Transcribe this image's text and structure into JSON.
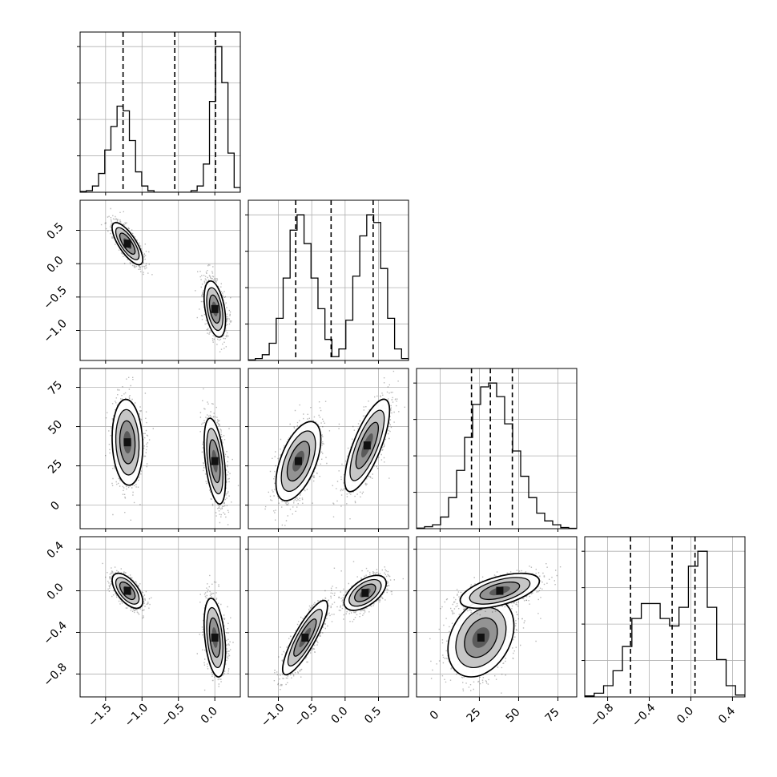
{
  "chart_data": {
    "type": "corner",
    "description_note": "",
    "parameters": [
      {
        "index": 0,
        "range": [
          -1.85,
          0.35
        ],
        "ticks": [
          -1.5,
          -1.0,
          -0.5,
          0.0
        ],
        "tick_labels": [
          "−1.5",
          "−1.0",
          "−0.5",
          "0.0"
        ],
        "quantiles": [
          -1.26,
          -0.55,
          0.01
        ],
        "hist_counts": [
          0.5,
          1,
          4,
          12,
          27,
          42,
          55,
          52,
          33,
          13,
          4,
          1,
          0,
          0,
          0,
          0,
          0,
          0,
          1,
          4,
          18,
          58,
          93,
          70,
          25,
          3
        ]
      },
      {
        "index": 1,
        "range": [
          -1.45,
          0.95
        ],
        "ticks": [
          -1.0,
          -0.5,
          0.0,
          0.5
        ],
        "tick_labels": [
          "−1.0",
          "−0.5",
          "0.0",
          "0.5"
        ],
        "ylim_ticks": [
          0.5,
          0.0,
          -0.5,
          -1.0
        ],
        "quantiles": [
          -0.74,
          -0.21,
          0.42
        ],
        "hist_counts": [
          0.3,
          1,
          3,
          9,
          22,
          43,
          68,
          76,
          61,
          43,
          27,
          11,
          2,
          6,
          21,
          44,
          65,
          76,
          72,
          48,
          22,
          6,
          1
        ]
      },
      {
        "index": 2,
        "range": [
          -15,
          87
        ],
        "ticks": [
          0,
          25,
          50,
          75
        ],
        "tick_labels": [
          "0",
          "25",
          "50",
          "75"
        ],
        "quantiles": [
          20,
          32,
          46
        ],
        "hist_counts": [
          0.3,
          1,
          2,
          6,
          16,
          30,
          47,
          64,
          73,
          75,
          68,
          54,
          40,
          27,
          16,
          8,
          4,
          2,
          0.6,
          0.2
        ]
      },
      {
        "index": 3,
        "range": [
          -1.02,
          0.52
        ],
        "ticks": [
          -0.8,
          -0.4,
          0.0,
          0.4
        ],
        "tick_labels": [
          "−0.8",
          "−0.4",
          "0.0",
          "0.4"
        ],
        "ylim_ticks": [
          0.4,
          0.0,
          -0.4,
          -0.8
        ],
        "quantiles": [
          -0.58,
          -0.18,
          0.04
        ],
        "hist_counts": [
          0.5,
          2,
          6,
          14,
          27,
          42,
          50,
          50,
          42,
          38,
          48,
          70,
          78,
          48,
          20,
          6,
          1
        ]
      }
    ],
    "pair_clusters": {
      "1_0": [
        {
          "center": [
            -1.2,
            0.3
          ],
          "spread": [
            0.1,
            0.15
          ],
          "rho": -0.75,
          "n": 1000
        },
        {
          "center": [
            0.0,
            -0.68
          ],
          "spread": [
            0.07,
            0.2
          ],
          "rho": -0.4,
          "n": 1000
        }
      ],
      "2_0": [
        {
          "center": [
            -1.2,
            40
          ],
          "spread": [
            0.1,
            13
          ],
          "rho": -0.1,
          "n": 1000
        },
        {
          "center": [
            0.0,
            28
          ],
          "spread": [
            0.07,
            13
          ],
          "rho": -0.45,
          "n": 1000
        }
      ],
      "2_1": [
        {
          "center": [
            -0.7,
            28
          ],
          "spread": [
            0.16,
            12
          ],
          "rho": 0.55,
          "n": 1000
        },
        {
          "center": [
            0.33,
            38
          ],
          "spread": [
            0.16,
            14
          ],
          "rho": 0.75,
          "n": 1000
        }
      ],
      "3_0": [
        {
          "center": [
            -1.2,
            0.0
          ],
          "spread": [
            0.1,
            0.08
          ],
          "rho": -0.6,
          "n": 1000
        },
        {
          "center": [
            0.0,
            -0.45
          ],
          "spread": [
            0.07,
            0.18
          ],
          "rho": -0.35,
          "n": 1000
        }
      ],
      "3_1": [
        {
          "center": [
            -0.6,
            -0.45
          ],
          "spread": [
            0.16,
            0.17
          ],
          "rho": 0.85,
          "n": 1000
        },
        {
          "center": [
            0.3,
            -0.02
          ],
          "spread": [
            0.15,
            0.08
          ],
          "rho": 0.55,
          "n": 1000
        }
      ],
      "3_2": [
        {
          "center": [
            26,
            -0.45
          ],
          "spread": [
            10,
            0.18
          ],
          "rho": 0.3,
          "n": 1000
        },
        {
          "center": [
            38,
            0.0
          ],
          "spread": [
            12,
            0.08
          ],
          "rho": 0.55,
          "n": 1000
        }
      ]
    }
  }
}
